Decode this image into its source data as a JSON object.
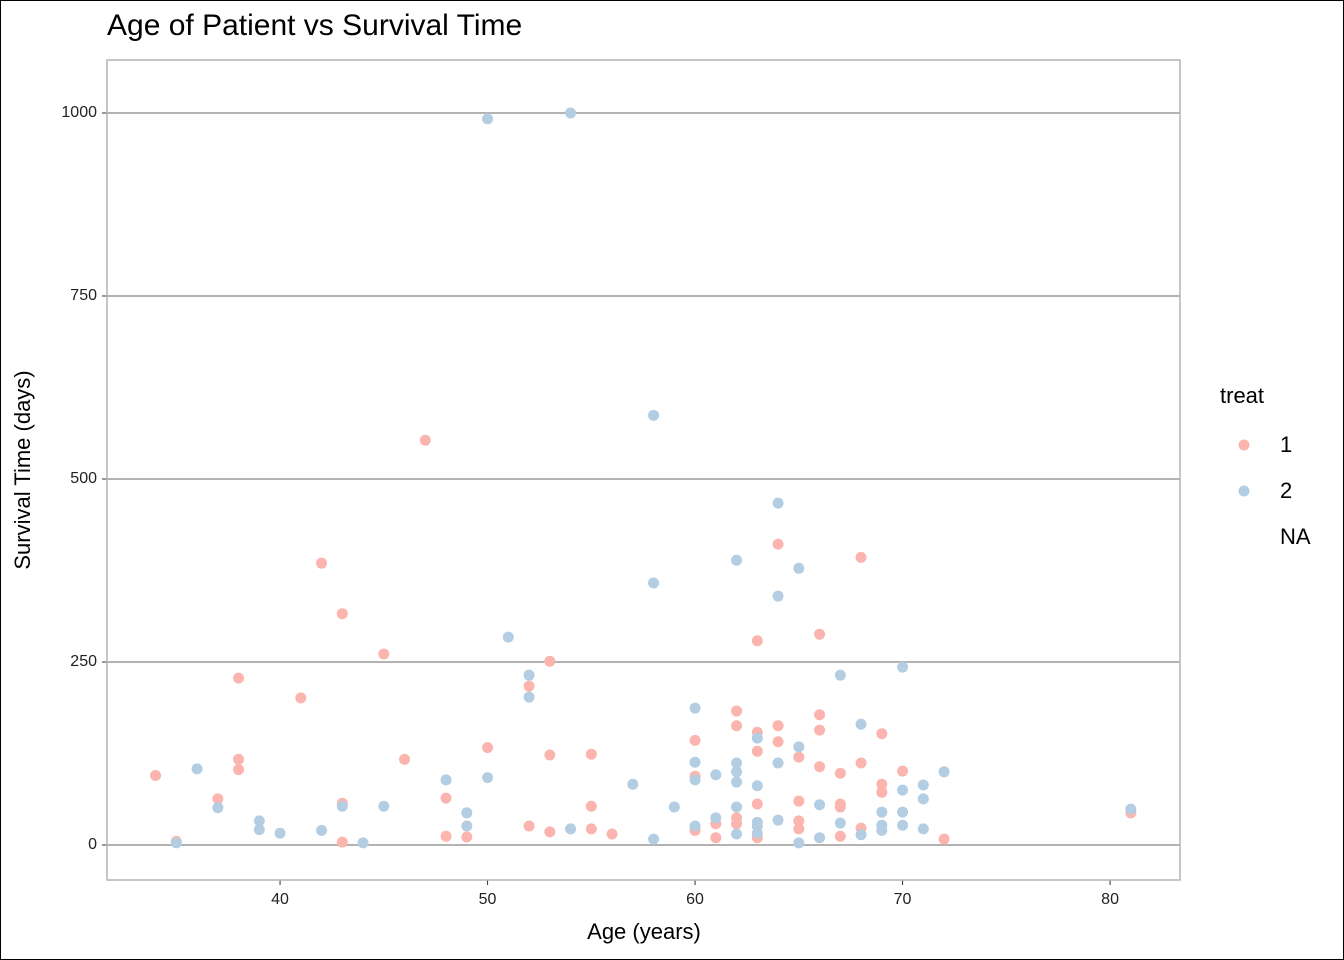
{
  "chart_data": {
    "type": "scatter",
    "title": "Age of Patient vs Survival Time",
    "x_label": "Age (years)",
    "y_label": "Survival Time (days)",
    "legend_title": "treat",
    "legend_position": "right",
    "grid": "y",
    "xlim": [
      31.66,
      83.37
    ],
    "ylim": [
      -47.8,
      1072.4
    ],
    "xticks": [
      40,
      50,
      60,
      70,
      80
    ],
    "yticks": [
      0,
      250,
      500,
      750,
      1000
    ],
    "series": [
      {
        "name": "1",
        "color": "#fbb4ae",
        "x": [
          34,
          35,
          37,
          38,
          38,
          38,
          41,
          42,
          43,
          43,
          43,
          45,
          46,
          47,
          48,
          48,
          49,
          50,
          52,
          52,
          53,
          53,
          53,
          55,
          55,
          55,
          56,
          60,
          60,
          60,
          61,
          61,
          62,
          62,
          62,
          62,
          63,
          63,
          63,
          63,
          63,
          64,
          64,
          64,
          65,
          65,
          65,
          65,
          66,
          66,
          66,
          66,
          67,
          67,
          67,
          67,
          68,
          68,
          68,
          69,
          69,
          69,
          70,
          72,
          81
        ],
        "values": [
          95,
          5,
          63,
          117,
          103,
          228,
          201,
          385,
          316,
          57,
          4,
          261,
          117,
          553,
          64,
          12,
          11,
          133,
          217,
          26,
          251,
          123,
          18,
          124,
          53,
          22,
          15,
          143,
          94,
          20,
          29,
          10,
          183,
          163,
          37,
          29,
          279,
          154,
          128,
          56,
          10,
          411,
          163,
          141,
          120,
          60,
          33,
          22,
          288,
          178,
          157,
          107,
          98,
          56,
          52,
          12,
          393,
          112,
          23,
          152,
          83,
          72,
          101,
          8,
          44
        ]
      },
      {
        "name": "2",
        "color": "#b3cde3",
        "x": [
          35,
          36,
          37,
          39,
          39,
          40,
          42,
          43,
          44,
          45,
          48,
          49,
          49,
          50,
          50,
          51,
          52,
          52,
          54,
          54,
          57,
          58,
          58,
          58,
          59,
          60,
          60,
          60,
          60,
          61,
          61,
          62,
          62,
          62,
          62,
          62,
          62,
          63,
          63,
          63,
          63,
          63,
          64,
          64,
          64,
          64,
          65,
          65,
          65,
          66,
          66,
          67,
          67,
          68,
          68,
          69,
          69,
          69,
          70,
          70,
          70,
          70,
          71,
          71,
          71,
          72,
          81
        ],
        "values": [
          3,
          104,
          51,
          33,
          21,
          16,
          20,
          53,
          3,
          53,
          89,
          44,
          26,
          992,
          92,
          284,
          232,
          202,
          1000,
          22,
          83,
          587,
          358,
          8,
          52,
          187,
          113,
          89,
          26,
          96,
          37,
          389,
          112,
          100,
          86,
          52,
          15,
          146,
          81,
          31,
          26,
          16,
          467,
          340,
          112,
          34,
          378,
          134,
          3,
          55,
          10,
          232,
          30,
          165,
          14,
          45,
          27,
          20,
          243,
          75,
          45,
          27,
          82,
          63,
          22,
          100,
          49
        ]
      },
      {
        "name": "NA",
        "x": [],
        "values": []
      }
    ]
  }
}
